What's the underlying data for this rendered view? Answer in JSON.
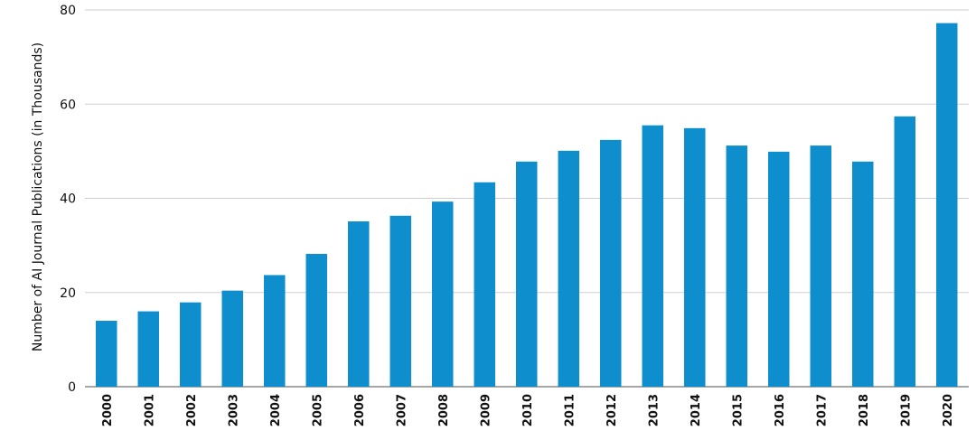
{
  "chart_data": {
    "type": "bar",
    "title": "",
    "xlabel": "",
    "ylabel": "Number of AI Journal Publications (in Thousands)",
    "ylim": [
      0,
      80
    ],
    "yticks": [
      0,
      20,
      40,
      60,
      80
    ],
    "grid": true,
    "bar_color": "#0e8ecc",
    "categories": [
      "2000",
      "2001",
      "2002",
      "2003",
      "2004",
      "2005",
      "2006",
      "2007",
      "2008",
      "2009",
      "2010",
      "2011",
      "2012",
      "2013",
      "2014",
      "2015",
      "2016",
      "2017",
      "2018",
      "2019",
      "2020"
    ],
    "values": [
      14.0,
      16.0,
      17.9,
      20.4,
      23.7,
      28.2,
      35.1,
      36.3,
      39.3,
      43.4,
      47.8,
      50.1,
      52.4,
      55.5,
      54.9,
      51.2,
      49.9,
      51.2,
      47.8,
      57.4,
      77.2
    ]
  }
}
